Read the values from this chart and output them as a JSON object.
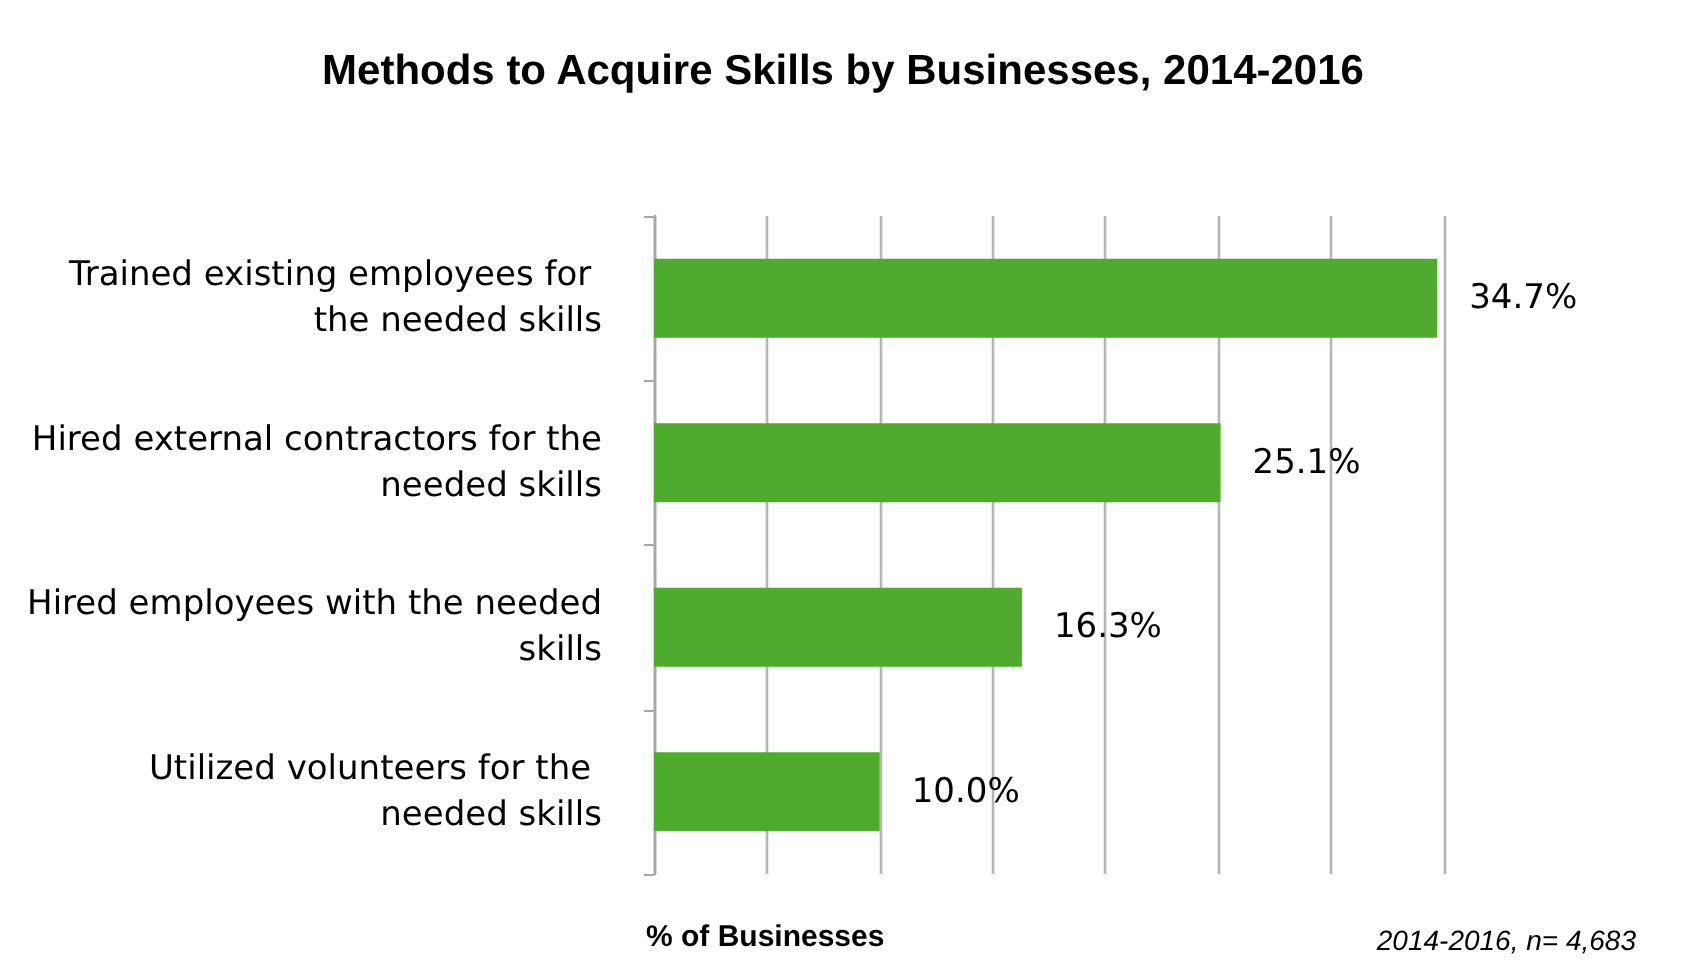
{
  "chart_data": {
    "type": "bar",
    "orientation": "horizontal",
    "title": "Methods to Acquire Skills by Businesses, 2014-2016",
    "xlabel": "% of Businesses",
    "annotations": [
      "2014-2016, n= 4,683"
    ],
    "categories": [
      "Trained existing employees for the needed skills",
      "Hired external contractors for the needed skills",
      "Hired employees with the needed skills",
      "Utilized volunteers for the needed skills"
    ],
    "values": [
      34.7,
      25.1,
      16.3,
      10.0
    ],
    "value_labels": [
      "34.7%",
      "25.1%",
      "16.3%",
      "10.0%"
    ],
    "color": "#4eab2e",
    "xlim": [
      0,
      35
    ],
    "xticks": [
      {
        "value": 0,
        "label": null
      },
      {
        "value": 5,
        "label": null
      },
      {
        "value": 10,
        "label": null
      },
      {
        "value": 15,
        "label": null
      },
      {
        "value": 20,
        "label": null
      },
      {
        "value": 25,
        "label": null
      },
      {
        "value": 30,
        "label": null
      },
      {
        "value": 35,
        "label": null
      }
    ],
    "tick_labels": "y",
    "grid": "x"
  }
}
